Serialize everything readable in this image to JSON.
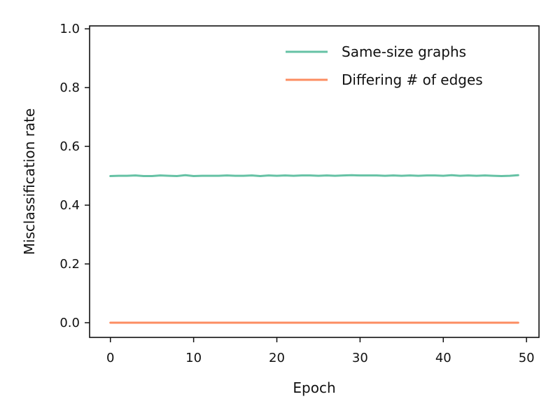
{
  "chart_data": {
    "type": "line",
    "title": "",
    "xlabel": "Epoch",
    "ylabel": "Misclassification rate",
    "xlim": [
      -2.5,
      51.5
    ],
    "ylim": [
      -0.05,
      1.01
    ],
    "xticks": [
      0,
      10,
      20,
      30,
      40,
      50
    ],
    "yticks": [
      0.0,
      0.2,
      0.4,
      0.6,
      0.8,
      1.0
    ],
    "xtick_labels": [
      "0",
      "10",
      "20",
      "30",
      "40",
      "50"
    ],
    "ytick_labels": [
      "0.0",
      "0.2",
      "0.4",
      "0.6",
      "0.8",
      "1.0"
    ],
    "grid": false,
    "legend_position": "top-right",
    "x": [
      0,
      1,
      2,
      3,
      4,
      5,
      6,
      7,
      8,
      9,
      10,
      11,
      12,
      13,
      14,
      15,
      16,
      17,
      18,
      19,
      20,
      21,
      22,
      23,
      24,
      25,
      26,
      27,
      28,
      29,
      30,
      31,
      32,
      33,
      34,
      35,
      36,
      37,
      38,
      39,
      40,
      41,
      42,
      43,
      44,
      45,
      46,
      47,
      48,
      49
    ],
    "series": [
      {
        "name": "Same-size graphs",
        "color": "#66c2a5",
        "values": [
          0.499,
          0.5,
          0.5,
          0.501,
          0.499,
          0.499,
          0.501,
          0.5,
          0.499,
          0.502,
          0.499,
          0.5,
          0.5,
          0.5,
          0.501,
          0.5,
          0.5,
          0.501,
          0.499,
          0.501,
          0.5,
          0.501,
          0.5,
          0.501,
          0.501,
          0.5,
          0.501,
          0.5,
          0.501,
          0.502,
          0.501,
          0.501,
          0.501,
          0.5,
          0.501,
          0.5,
          0.501,
          0.5,
          0.501,
          0.501,
          0.5,
          0.502,
          0.5,
          0.501,
          0.5,
          0.501,
          0.5,
          0.499,
          0.5,
          0.502
        ]
      },
      {
        "name": "Differing # of edges",
        "color": "#fc8d62",
        "values": [
          0,
          0,
          0,
          0,
          0,
          0,
          0,
          0,
          0,
          0,
          0,
          0,
          0,
          0,
          0,
          0,
          0,
          0,
          0,
          0,
          0,
          0,
          0,
          0,
          0,
          0,
          0,
          0,
          0,
          0,
          0,
          0,
          0,
          0,
          0,
          0,
          0,
          0,
          0,
          0,
          0,
          0,
          0,
          0,
          0,
          0,
          0,
          0,
          0,
          0
        ]
      }
    ]
  }
}
